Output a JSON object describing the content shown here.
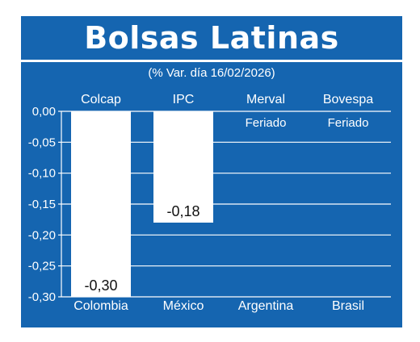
{
  "chart_data": {
    "type": "bar",
    "title": "Bolsas Latinas",
    "subtitle": "(% Var. día 16/02/2026)",
    "index_names": [
      "Colcap",
      "IPC",
      "Merval",
      "Bovespa"
    ],
    "categories": [
      "Colombia",
      "México",
      "Argentina",
      "Brasil"
    ],
    "values": [
      -0.3,
      -0.18,
      null,
      null
    ],
    "value_labels": [
      "-0,30",
      "-0,18",
      "Feriado",
      "Feriado"
    ],
    "y_ticks": [
      "0,00",
      "-0,05",
      "-0,10",
      "-0,15",
      "-0,20",
      "-0,25",
      "-0,30"
    ],
    "ylim": [
      -0.3,
      0
    ],
    "grid": true,
    "colors": {
      "panel": "#1565b0",
      "bar": "#ffffff",
      "grid": "#ffffff",
      "text": "#ffffff",
      "label_on_bar": "#111111"
    }
  }
}
